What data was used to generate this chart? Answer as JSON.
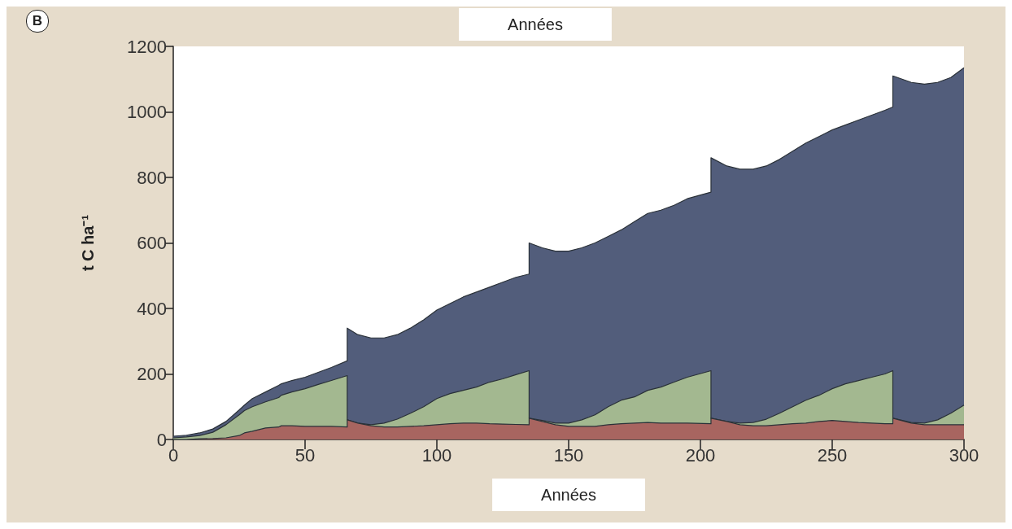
{
  "chart_data": {
    "type": "area",
    "stacked": true,
    "title": "Années",
    "xlabel": "Années",
    "ylabel": "t C ha⁻¹",
    "annotations": [
      "B"
    ],
    "x": [
      0,
      5,
      10,
      15,
      20,
      25,
      27,
      30,
      35,
      40,
      41,
      45,
      50,
      55,
      60,
      66,
      66,
      70,
      75,
      80,
      85,
      90,
      95,
      100,
      105,
      110,
      115,
      120,
      125,
      130,
      135,
      135,
      140,
      145,
      150,
      155,
      160,
      165,
      170,
      175,
      180,
      185,
      190,
      195,
      204,
      204,
      210,
      215,
      220,
      225,
      230,
      235,
      240,
      245,
      250,
      255,
      260,
      265,
      270,
      273,
      273,
      280,
      285,
      290,
      295,
      300
    ],
    "series": [
      {
        "color": "#a86560",
        "values": [
          0,
          0,
          2,
          3,
          5,
          12,
          20,
          25,
          35,
          38,
          42,
          42,
          40,
          40,
          40,
          38,
          60,
          50,
          42,
          38,
          38,
          40,
          42,
          45,
          48,
          50,
          50,
          48,
          47,
          46,
          45,
          65,
          55,
          45,
          40,
          40,
          40,
          45,
          48,
          50,
          52,
          50,
          50,
          50,
          48,
          65,
          55,
          45,
          42,
          42,
          45,
          48,
          50,
          55,
          58,
          55,
          52,
          50,
          48,
          48,
          65,
          50,
          45,
          45,
          45,
          45
        ]
      },
      {
        "color": "#a3b890",
        "values": [
          5,
          8,
          10,
          19,
          40,
          63,
          68,
          75,
          80,
          90,
          93,
          103,
          115,
          128,
          140,
          157,
          0,
          0,
          3,
          12,
          24,
          40,
          58,
          80,
          92,
          100,
          110,
          127,
          138,
          152,
          165,
          0,
          3,
          5,
          10,
          20,
          35,
          55,
          72,
          80,
          98,
          110,
          125,
          140,
          162,
          0,
          0,
          5,
          10,
          20,
          35,
          52,
          70,
          80,
          97,
          115,
          128,
          140,
          152,
          162,
          0,
          2,
          5,
          15,
          35,
          60
        ]
      },
      {
        "color": "#525d7b",
        "values": [
          5,
          5,
          8,
          10,
          10,
          15,
          17,
          25,
          30,
          37,
          35,
          35,
          35,
          37,
          40,
          45,
          280,
          270,
          265,
          260,
          258,
          260,
          265,
          270,
          275,
          285,
          290,
          290,
          295,
          297,
          295,
          535,
          527,
          525,
          525,
          525,
          525,
          520,
          520,
          535,
          540,
          540,
          540,
          545,
          545,
          795,
          780,
          775,
          773,
          773,
          775,
          780,
          785,
          790,
          790,
          790,
          795,
          800,
          805,
          805,
          1045,
          1038,
          1035,
          1030,
          1025,
          1030
        ]
      }
    ],
    "xlim": [
      0,
      300
    ],
    "xticks": [
      0,
      50,
      100,
      150,
      200,
      250,
      300
    ],
    "ylim": [
      0,
      1200
    ],
    "yticks": [
      0,
      200,
      400,
      600,
      800,
      1000,
      1200
    ],
    "grid": false
  }
}
